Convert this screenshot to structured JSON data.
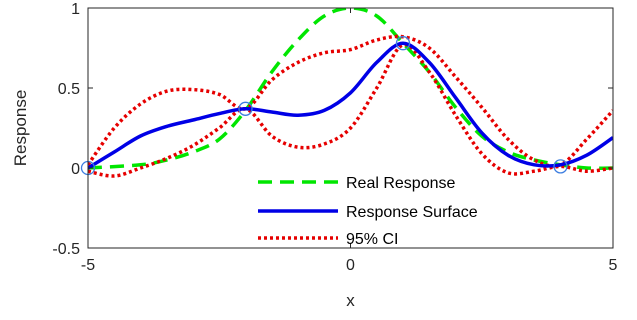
{
  "chart_data": {
    "type": "line",
    "title": "",
    "xlabel": "x",
    "ylabel": "Response",
    "xlim": [
      -5,
      5
    ],
    "ylim": [
      -0.5,
      1
    ],
    "xticks": [
      -5,
      0,
      5
    ],
    "yticks": [
      -0.5,
      0,
      0.5,
      1
    ],
    "xtick_labels": [
      "-5",
      "0",
      "5"
    ],
    "ytick_labels": [
      "-0.5",
      "0",
      "0.5",
      "1"
    ],
    "grid": false,
    "legend_position": "bottom-center",
    "series": [
      {
        "name": "Real Response",
        "style": "dashed",
        "color": "#00e600",
        "x": [
          -5,
          -4,
          -3.5,
          -3,
          -2.5,
          -2,
          -1.5,
          -1,
          -0.5,
          0,
          0.5,
          1,
          1.5,
          2,
          2.5,
          3,
          3.5,
          4,
          4.5,
          5
        ],
        "y": [
          0.0,
          0.02,
          0.05,
          0.1,
          0.18,
          0.36,
          0.6,
          0.8,
          0.95,
          1.0,
          0.95,
          0.78,
          0.6,
          0.38,
          0.2,
          0.1,
          0.05,
          0.02,
          0.0,
          0.0
        ]
      },
      {
        "name": "Response Surface",
        "style": "solid",
        "color": "#0000e6",
        "x": [
          -5,
          -4.5,
          -4,
          -3.5,
          -3,
          -2.5,
          -2,
          -1.5,
          -1,
          -0.5,
          0,
          0.5,
          1,
          1.5,
          2,
          2.5,
          3,
          3.5,
          4,
          4.5,
          5
        ],
        "y": [
          0.0,
          0.1,
          0.2,
          0.26,
          0.3,
          0.34,
          0.37,
          0.35,
          0.33,
          0.36,
          0.47,
          0.66,
          0.78,
          0.66,
          0.44,
          0.22,
          0.08,
          0.02,
          0.02,
          0.08,
          0.19
        ]
      },
      {
        "name": "95% CI",
        "style": "dotted",
        "color": "#e60000",
        "x": [
          -5,
          -4.5,
          -4,
          -3.5,
          -3,
          -2.5,
          -2,
          -1.5,
          -1,
          -0.5,
          0,
          0.5,
          1,
          1.5,
          2,
          2.5,
          3,
          3.5,
          4,
          4.5,
          5
        ],
        "y": [
          0.02,
          0.25,
          0.4,
          0.48,
          0.49,
          0.46,
          0.37,
          0.55,
          0.66,
          0.72,
          0.74,
          0.8,
          0.82,
          0.75,
          0.57,
          0.38,
          0.18,
          0.05,
          0.02,
          0.18,
          0.36
        ]
      },
      {
        "name": "",
        "style": "dotted",
        "color": "#e60000",
        "x": [
          -5,
          -4.5,
          -4,
          -3.5,
          -3,
          -2.5,
          -2,
          -1.5,
          -1,
          -0.5,
          0,
          0.5,
          1,
          1.5,
          2,
          2.5,
          3,
          3.5,
          4,
          4.5,
          5
        ],
        "y": [
          -0.02,
          -0.05,
          0.0,
          0.06,
          0.14,
          0.25,
          0.37,
          0.2,
          0.13,
          0.15,
          0.25,
          0.5,
          0.77,
          0.6,
          0.33,
          0.09,
          -0.03,
          -0.02,
          0.01,
          -0.02,
          0.0
        ]
      }
    ],
    "sample_points": {
      "x": [
        -5,
        -2,
        1,
        4
      ],
      "y": [
        0,
        0.37,
        0.78,
        0.01
      ],
      "color": "#3d7ee0"
    },
    "legend": [
      {
        "label": "Real Response",
        "style": "dashed",
        "color": "#00e600"
      },
      {
        "label": "Response Surface",
        "style": "solid",
        "color": "#0000e6"
      },
      {
        "label": "95% CI",
        "style": "dotted",
        "color": "#e60000"
      }
    ]
  }
}
